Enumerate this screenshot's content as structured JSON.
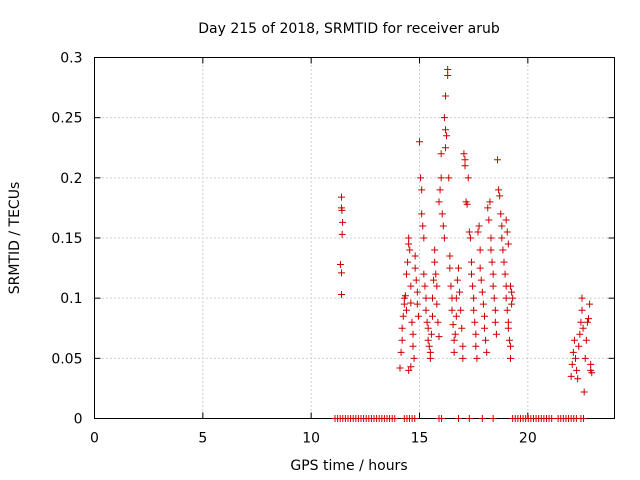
{
  "chart_data": {
    "type": "scatter",
    "title": "Day 215 of 2018, SRMTID for receiver arub",
    "xlabel": "GPS time / hours",
    "ylabel": "SRMTID / TECUs",
    "xlim": [
      0,
      24
    ],
    "ylim": [
      0,
      0.3
    ],
    "xticks": [
      0,
      5,
      10,
      15,
      20
    ],
    "xtick_labels": [
      "0",
      "5",
      "10",
      "15",
      "20"
    ],
    "yticks": [
      0,
      0.05,
      0.1,
      0.15,
      0.2,
      0.25,
      0.3
    ],
    "ytick_labels": [
      "0",
      "0.05",
      "0.1",
      "0.15",
      "0.2",
      "0.25",
      "0.3"
    ],
    "grid": true,
    "marker": "+",
    "series": [
      {
        "name": "SRMTID",
        "color": "#cc0000",
        "points": [
          [
            11.4,
            0.184
          ],
          [
            11.4,
            0.175
          ],
          [
            11.42,
            0.173
          ],
          [
            11.45,
            0.163
          ],
          [
            11.43,
            0.153
          ],
          [
            11.35,
            0.128
          ],
          [
            11.4,
            0.121
          ],
          [
            11.4,
            0.103
          ],
          [
            14.1,
            0.042
          ],
          [
            14.15,
            0.055
          ],
          [
            14.2,
            0.065
          ],
          [
            14.2,
            0.075
          ],
          [
            14.25,
            0.085
          ],
          [
            14.3,
            0.095
          ],
          [
            14.3,
            0.1
          ],
          [
            14.35,
            0.102
          ],
          [
            14.4,
            0.09
          ],
          [
            14.4,
            0.12
          ],
          [
            14.45,
            0.13
          ],
          [
            14.5,
            0.15
          ],
          [
            14.5,
            0.145
          ],
          [
            14.55,
            0.14
          ],
          [
            14.6,
            0.11
          ],
          [
            14.6,
            0.096
          ],
          [
            14.65,
            0.08
          ],
          [
            14.7,
            0.07
          ],
          [
            14.7,
            0.06
          ],
          [
            14.75,
            0.05
          ],
          [
            14.6,
            0.043
          ],
          [
            14.5,
            0.04
          ],
          [
            14.8,
            0.135
          ],
          [
            14.8,
            0.125
          ],
          [
            14.85,
            0.115
          ],
          [
            14.9,
            0.105
          ],
          [
            14.9,
            0.095
          ],
          [
            14.95,
            0.085
          ],
          [
            15.0,
            0.23
          ],
          [
            15.05,
            0.2
          ],
          [
            15.1,
            0.19
          ],
          [
            15.1,
            0.17
          ],
          [
            15.15,
            0.16
          ],
          [
            15.2,
            0.15
          ],
          [
            15.2,
            0.12
          ],
          [
            15.25,
            0.11
          ],
          [
            15.3,
            0.1
          ],
          [
            15.3,
            0.09
          ],
          [
            15.35,
            0.08
          ],
          [
            15.4,
            0.075
          ],
          [
            15.4,
            0.065
          ],
          [
            15.45,
            0.06
          ],
          [
            15.5,
            0.055
          ],
          [
            15.5,
            0.05
          ],
          [
            15.55,
            0.07
          ],
          [
            15.6,
            0.085
          ],
          [
            15.6,
            0.1
          ],
          [
            15.65,
            0.115
          ],
          [
            15.7,
            0.13
          ],
          [
            15.7,
            0.14
          ],
          [
            15.75,
            0.12
          ],
          [
            15.8,
            0.11
          ],
          [
            15.8,
            0.095
          ],
          [
            15.85,
            0.08
          ],
          [
            15.9,
            0.068
          ],
          [
            15.9,
            0.18
          ],
          [
            15.95,
            0.19
          ],
          [
            16.0,
            0.22
          ],
          [
            16.0,
            0.2
          ],
          [
            16.05,
            0.17
          ],
          [
            16.1,
            0.16
          ],
          [
            16.15,
            0.15
          ],
          [
            16.2,
            0.24
          ],
          [
            16.25,
            0.235
          ],
          [
            16.2,
            0.225
          ],
          [
            16.15,
            0.25
          ],
          [
            16.2,
            0.268
          ],
          [
            16.3,
            0.29
          ],
          [
            16.3,
            0.285
          ],
          [
            16.35,
            0.2
          ],
          [
            16.4,
            0.135
          ],
          [
            16.4,
            0.125
          ],
          [
            16.45,
            0.11
          ],
          [
            16.5,
            0.1
          ],
          [
            16.5,
            0.09
          ],
          [
            16.55,
            0.078
          ],
          [
            16.6,
            0.065
          ],
          [
            16.6,
            0.055
          ],
          [
            16.65,
            0.07
          ],
          [
            16.7,
            0.085
          ],
          [
            16.7,
            0.1
          ],
          [
            16.75,
            0.115
          ],
          [
            16.8,
            0.125
          ],
          [
            16.85,
            0.105
          ],
          [
            16.9,
            0.09
          ],
          [
            16.95,
            0.075
          ],
          [
            17.0,
            0.06
          ],
          [
            17.0,
            0.05
          ],
          [
            17.05,
            0.22
          ],
          [
            17.1,
            0.215
          ],
          [
            17.1,
            0.21
          ],
          [
            17.15,
            0.18
          ],
          [
            17.2,
            0.178
          ],
          [
            17.25,
            0.2
          ],
          [
            17.3,
            0.155
          ],
          [
            17.35,
            0.15
          ],
          [
            17.4,
            0.13
          ],
          [
            17.4,
            0.12
          ],
          [
            17.45,
            0.11
          ],
          [
            17.5,
            0.1
          ],
          [
            17.5,
            0.09
          ],
          [
            17.55,
            0.08
          ],
          [
            17.6,
            0.07
          ],
          [
            17.6,
            0.06
          ],
          [
            17.65,
            0.05
          ],
          [
            17.7,
            0.155
          ],
          [
            17.75,
            0.16
          ],
          [
            17.8,
            0.14
          ],
          [
            17.8,
            0.125
          ],
          [
            17.85,
            0.115
          ],
          [
            17.9,
            0.105
          ],
          [
            17.95,
            0.095
          ],
          [
            18.0,
            0.085
          ],
          [
            18.0,
            0.075
          ],
          [
            18.05,
            0.065
          ],
          [
            18.1,
            0.055
          ],
          [
            18.15,
            0.175
          ],
          [
            18.2,
            0.165
          ],
          [
            18.25,
            0.18
          ],
          [
            18.3,
            0.15
          ],
          [
            18.3,
            0.14
          ],
          [
            18.35,
            0.13
          ],
          [
            18.4,
            0.12
          ],
          [
            18.4,
            0.11
          ],
          [
            18.45,
            0.1
          ],
          [
            18.5,
            0.09
          ],
          [
            18.5,
            0.08
          ],
          [
            18.55,
            0.07
          ],
          [
            18.6,
            0.215
          ],
          [
            18.65,
            0.19
          ],
          [
            18.7,
            0.185
          ],
          [
            18.75,
            0.17
          ],
          [
            18.8,
            0.16
          ],
          [
            18.8,
            0.15
          ],
          [
            18.85,
            0.14
          ],
          [
            18.9,
            0.13
          ],
          [
            18.95,
            0.12
          ],
          [
            19.0,
            0.11
          ],
          [
            19.0,
            0.1
          ],
          [
            19.05,
            0.09
          ],
          [
            19.1,
            0.08
          ],
          [
            19.1,
            0.075
          ],
          [
            19.15,
            0.065
          ],
          [
            19.2,
            0.06
          ],
          [
            19.2,
            0.05
          ],
          [
            19.0,
            0.165
          ],
          [
            19.05,
            0.155
          ],
          [
            19.1,
            0.145
          ],
          [
            19.2,
            0.11
          ],
          [
            19.25,
            0.105
          ],
          [
            19.25,
            0.095
          ],
          [
            19.3,
            0.1
          ],
          [
            22.0,
            0.035
          ],
          [
            22.05,
            0.045
          ],
          [
            22.1,
            0.055
          ],
          [
            22.15,
            0.065
          ],
          [
            22.2,
            0.05
          ],
          [
            22.25,
            0.04
          ],
          [
            22.3,
            0.033
          ],
          [
            22.35,
            0.06
          ],
          [
            22.4,
            0.07
          ],
          [
            22.45,
            0.08
          ],
          [
            22.5,
            0.1
          ],
          [
            22.5,
            0.09
          ],
          [
            22.55,
            0.075
          ],
          [
            22.6,
            0.022
          ],
          [
            22.65,
            0.05
          ],
          [
            22.7,
            0.065
          ],
          [
            22.75,
            0.08
          ],
          [
            22.8,
            0.083
          ],
          [
            22.85,
            0.095
          ],
          [
            22.9,
            0.045
          ],
          [
            22.9,
            0.04
          ],
          [
            22.95,
            0.038
          ]
        ],
        "zero_ranges": [
          [
            11.1,
            13.95
          ],
          [
            14.3,
            14.85
          ],
          [
            15.9,
            16.05
          ],
          [
            16.8,
            16.9
          ],
          [
            17.3,
            17.4
          ],
          [
            17.9,
            18.0
          ],
          [
            18.4,
            18.5
          ],
          [
            19.3,
            21.2
          ],
          [
            21.4,
            22.3
          ],
          [
            22.45,
            22.6
          ]
        ]
      }
    ]
  }
}
